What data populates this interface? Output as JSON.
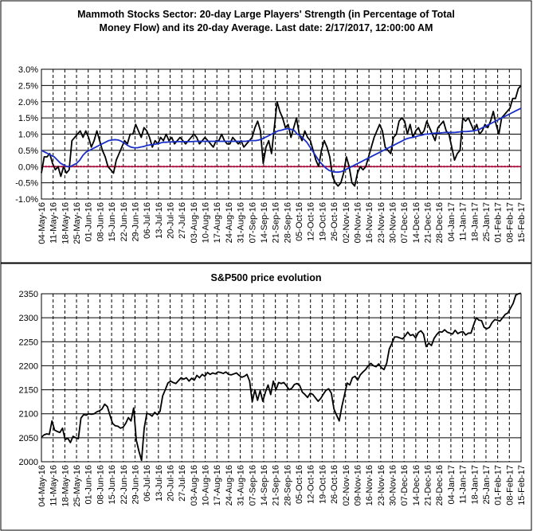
{
  "chart_data": [
    {
      "type": "line",
      "title": "Mammoth Stocks Sector: 20-day Large Players' Strength (in Percentage of Total Money Flow) and its 20-day Average. Last date: 2/17/2017, 12:00:00 AM",
      "title_lines": [
        "Mammoth Stocks Sector: 20-day Large Players' Strength (in Percentage of Total",
        "Money Flow) and its 20-day Average. Last date: 2/17/2017, 12:00:00 AM"
      ],
      "ylim": [
        -1.0,
        3.0
      ],
      "yticks": [
        -1.0,
        -0.5,
        0.0,
        0.5,
        1.0,
        1.5,
        2.0,
        2.5,
        3.0
      ],
      "ytick_labels": [
        "-1.0%",
        "-0.5%",
        "0.0%",
        "0.5%",
        "1.0%",
        "1.5%",
        "2.0%",
        "2.5%",
        "3.0%"
      ],
      "grid": true,
      "reference_line": {
        "y": 0.0,
        "color": "#c0003c"
      },
      "x_labels": [
        "04-May-16",
        "11-May-16",
        "18-May-16",
        "25-May-16",
        "01-Jun-16",
        "08-Jun-16",
        "15-Jun-16",
        "22-Jun-16",
        "29-Jun-16",
        "06-Jul-16",
        "13-Jul-16",
        "20-Jul-16",
        "27-Jul-16",
        "03-Aug-16",
        "10-Aug-16",
        "17-Aug-16",
        "24-Aug-16",
        "31-Aug-16",
        "07-Sep-16",
        "14-Sep-16",
        "21-Sep-16",
        "28-Sep-16",
        "05-Oct-16",
        "12-Oct-16",
        "19-Oct-16",
        "26-Oct-16",
        "02-Nov-16",
        "09-Nov-16",
        "16-Nov-16",
        "23-Nov-16",
        "30-Nov-16",
        "07-Dec-16",
        "14-Dec-16",
        "21-Dec-16",
        "28-Dec-16",
        "04-Jan-17",
        "11-Jan-17",
        "18-Jan-17",
        "25-Jan-17",
        "01-Feb-17",
        "08-Feb-17",
        "15-Feb-17"
      ],
      "series": [
        {
          "name": "",
          "color": "#000000",
          "values": [
            -0.2,
            0.3,
            0.3,
            0.4,
            0.1,
            -0.1,
            0.0,
            -0.3,
            0.0,
            -0.2,
            -0.1,
            0.8,
            0.9,
            1.0,
            1.1,
            0.9,
            1.1,
            0.9,
            0.6,
            0.8,
            1.1,
            0.8,
            0.5,
            0.3,
            0.0,
            -0.1,
            -0.2,
            0.2,
            0.4,
            0.6,
            0.8,
            0.7,
            1.0,
            1.0,
            1.3,
            1.1,
            0.9,
            1.2,
            1.1,
            0.9,
            0.6,
            0.8,
            0.7,
            0.9,
            0.8,
            1.0,
            0.8,
            0.9,
            0.7,
            0.8,
            0.9,
            0.8,
            0.7,
            0.8,
            0.9,
            1.0,
            0.9,
            0.7,
            0.8,
            0.9,
            0.8,
            0.7,
            0.6,
            0.8,
            0.8,
            1.0,
            0.8,
            0.7,
            0.7,
            0.9,
            0.8,
            0.7,
            0.8,
            0.6,
            0.7,
            0.8,
            0.9,
            1.2,
            1.4,
            1.1,
            0.1,
            0.6,
            0.8,
            0.4,
            1.2,
            2.0,
            1.7,
            1.5,
            1.2,
            1.3,
            0.9,
            1.2,
            1.5,
            1.0,
            0.8,
            1.1,
            0.9,
            0.8,
            0.5,
            0.2,
            0.0,
            0.5,
            0.8,
            0.6,
            0.3,
            -0.3,
            -0.5,
            -0.6,
            -0.5,
            -0.2,
            0.3,
            0.0,
            -0.5,
            -0.6,
            -0.2,
            0.0,
            -0.1,
            0.0,
            0.3,
            0.6,
            0.9,
            1.1,
            1.3,
            1.1,
            0.6,
            0.5,
            0.4,
            0.9,
            1.0,
            1.4,
            1.5,
            1.4,
            1.0,
            1.3,
            0.9,
            1.1,
            1.2,
            1.0,
            1.1,
            1.4,
            1.2,
            1.0,
            0.8,
            1.2,
            1.3,
            1.4,
            1.1,
            1.0,
            0.6,
            0.2,
            0.4,
            0.5,
            1.5,
            1.4,
            1.5,
            1.3,
            1.1,
            1.3,
            1.0,
            1.1,
            1.3,
            1.2,
            1.4,
            1.7,
            1.3,
            1.0,
            1.5,
            1.6,
            1.7,
            1.8,
            2.1,
            2.1,
            2.4,
            2.5
          ]
        },
        {
          "name": "",
          "color": "#1a2fc8",
          "values": [
            0.5,
            0.45,
            0.4,
            0.35,
            0.3,
            0.2,
            0.1,
            0.05,
            0.0,
            0.0,
            0.05,
            0.1,
            0.2,
            0.35,
            0.45,
            0.5,
            0.55,
            0.6,
            0.65,
            0.7,
            0.75,
            0.8,
            0.82,
            0.83,
            0.82,
            0.78,
            0.72,
            0.65,
            0.6,
            0.58,
            0.58,
            0.6,
            0.62,
            0.65,
            0.67,
            0.68,
            0.7,
            0.72,
            0.75,
            0.75,
            0.76,
            0.76,
            0.77,
            0.77,
            0.77,
            0.77,
            0.77,
            0.77,
            0.78,
            0.78,
            0.78,
            0.78,
            0.78,
            0.78,
            0.78,
            0.78,
            0.78,
            0.78,
            0.78,
            0.78,
            0.78,
            0.78,
            0.78,
            0.78,
            0.78,
            0.8,
            0.8,
            0.8,
            0.82,
            0.85,
            0.9,
            0.95,
            1.0,
            1.05,
            1.1,
            1.12,
            1.15,
            1.17,
            1.15,
            1.12,
            1.0,
            0.95,
            0.85,
            0.75,
            0.6,
            0.45,
            0.3,
            0.15,
            0.05,
            -0.05,
            -0.12,
            -0.15,
            -0.17,
            -0.17,
            -0.15,
            -0.1,
            -0.05,
            0.0,
            0.05,
            0.1,
            0.15,
            0.2,
            0.25,
            0.3,
            0.35,
            0.4,
            0.45,
            0.5,
            0.55,
            0.6,
            0.65,
            0.7,
            0.75,
            0.8,
            0.85,
            0.88,
            0.9,
            0.92,
            0.95,
            0.97,
            1.0,
            1.0,
            1.02,
            1.03,
            1.03,
            1.04,
            1.05,
            1.05,
            1.05,
            1.05,
            1.06,
            1.07,
            1.08,
            1.08,
            1.09,
            1.1,
            1.12,
            1.15,
            1.2,
            1.25,
            1.3,
            1.35,
            1.4,
            1.45,
            1.5,
            1.55,
            1.6,
            1.65,
            1.7,
            1.75,
            1.8
          ]
        }
      ]
    },
    {
      "type": "line",
      "title": "S&P500 price evolution",
      "ylim": [
        2000,
        2350
      ],
      "yticks": [
        2000,
        2050,
        2100,
        2150,
        2200,
        2250,
        2300,
        2350
      ],
      "ytick_labels": [
        "2000",
        "2050",
        "2100",
        "2150",
        "2200",
        "2250",
        "2300",
        "2350"
      ],
      "grid": true,
      "x_labels": [
        "04-May-16",
        "11-May-16",
        "18-May-16",
        "25-May-16",
        "01-Jun-16",
        "08-Jun-16",
        "15-Jun-16",
        "22-Jun-16",
        "29-Jun-16",
        "06-Jul-16",
        "13-Jul-16",
        "20-Jul-16",
        "27-Jul-16",
        "03-Aug-16",
        "10-Aug-16",
        "17-Aug-16",
        "24-Aug-16",
        "31-Aug-16",
        "07-Sep-16",
        "14-Sep-16",
        "21-Sep-16",
        "28-Sep-16",
        "05-Oct-16",
        "12-Oct-16",
        "19-Oct-16",
        "26-Oct-16",
        "02-Nov-16",
        "09-Nov-16",
        "16-Nov-16",
        "23-Nov-16",
        "30-Nov-16",
        "07-Dec-16",
        "14-Dec-16",
        "21-Dec-16",
        "28-Dec-16",
        "04-Jan-17",
        "11-Jan-17",
        "18-Jan-17",
        "25-Jan-17",
        "01-Feb-17",
        "08-Feb-17",
        "15-Feb-17"
      ],
      "series": [
        {
          "name": "",
          "color": "#000000",
          "values": [
            2051,
            2056,
            2058,
            2057,
            2085,
            2066,
            2063,
            2061,
            2070,
            2046,
            2049,
            2040,
            2053,
            2050,
            2048,
            2091,
            2098,
            2097,
            2100,
            2099,
            2100,
            2104,
            2106,
            2110,
            2120,
            2115,
            2097,
            2080,
            2075,
            2074,
            2070,
            2072,
            2080,
            2092,
            2085,
            2112,
            2045,
            2022,
            2003,
            2070,
            2101,
            2099,
            2095,
            2103,
            2098,
            2105,
            2137,
            2150,
            2164,
            2168,
            2165,
            2163,
            2169,
            2175,
            2172,
            2175,
            2168,
            2174,
            2170,
            2180,
            2175,
            2182,
            2178,
            2186,
            2182,
            2185,
            2183,
            2187,
            2186,
            2184,
            2187,
            2182,
            2181,
            2183,
            2185,
            2180,
            2176,
            2178,
            2182,
            2168,
            2125,
            2150,
            2128,
            2148,
            2126,
            2145,
            2160,
            2140,
            2168,
            2150,
            2165,
            2163,
            2165,
            2158,
            2150,
            2153,
            2161,
            2163,
            2159,
            2145,
            2140,
            2134,
            2143,
            2140,
            2133,
            2126,
            2132,
            2141,
            2149,
            2152,
            2143,
            2110,
            2097,
            2085,
            2115,
            2139,
            2164,
            2160,
            2175,
            2178,
            2170,
            2181,
            2187,
            2192,
            2200,
            2205,
            2200,
            2198,
            2204,
            2196,
            2192,
            2205,
            2235,
            2247,
            2260,
            2260,
            2258,
            2256,
            2262,
            2270,
            2263,
            2265,
            2258,
            2269,
            2273,
            2266,
            2240,
            2247,
            2242,
            2257,
            2265,
            2271,
            2270,
            2275,
            2270,
            2268,
            2266,
            2274,
            2267,
            2270,
            2271,
            2264,
            2268,
            2268,
            2285,
            2300,
            2295,
            2294,
            2280,
            2277,
            2280,
            2290,
            2296,
            2295,
            2293,
            2300,
            2307,
            2310,
            2320,
            2330,
            2347,
            2350,
            2351
          ]
        }
      ]
    }
  ]
}
